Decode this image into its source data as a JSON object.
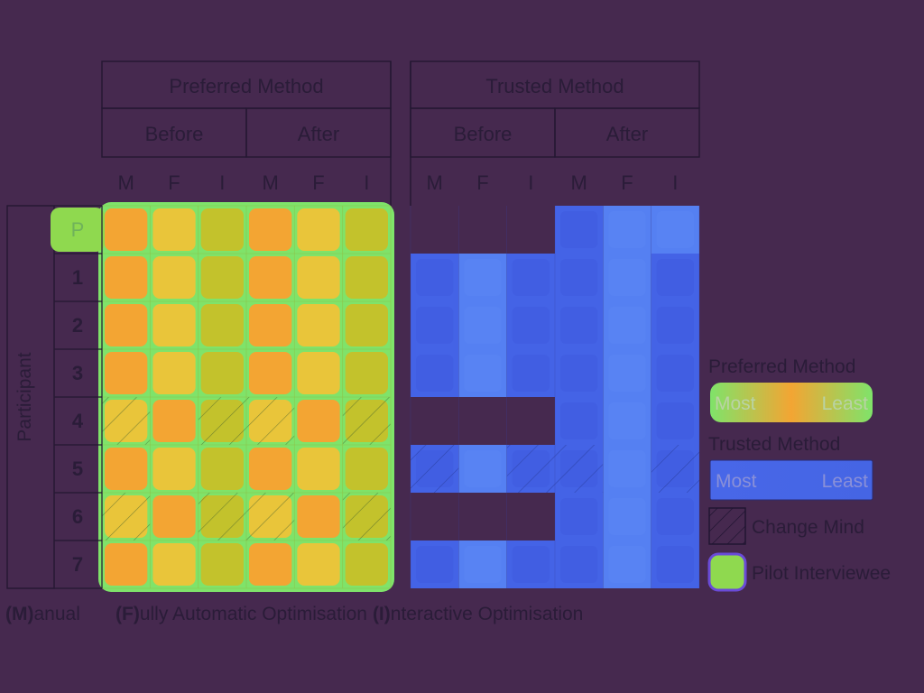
{
  "chart_data": {
    "type": "heatmap",
    "groups": [
      {
        "label": "Preferred Method",
        "phases": [
          "Before",
          "After"
        ]
      },
      {
        "label": "Trusted Method",
        "phases": [
          "Before",
          "After"
        ]
      }
    ],
    "methods": [
      "M",
      "F",
      "I"
    ],
    "ylabel": "Participant",
    "rows": [
      "P",
      "1",
      "2",
      "3",
      "4",
      "5",
      "6",
      "7"
    ],
    "preferred_rank": {
      "before": [
        [
          1,
          2,
          2
        ],
        [
          1,
          2,
          2
        ],
        [
          1,
          2,
          2
        ],
        [
          1,
          2,
          2
        ],
        [
          2,
          1,
          2
        ],
        [
          1,
          2,
          2
        ],
        [
          2,
          1,
          2
        ],
        [
          1,
          2,
          2
        ]
      ],
      "after": [
        [
          1,
          2,
          2
        ],
        [
          1,
          2,
          2
        ],
        [
          1,
          2,
          2
        ],
        [
          1,
          2,
          2
        ],
        [
          2,
          1,
          2
        ],
        [
          1,
          2,
          2
        ],
        [
          2,
          1,
          2
        ],
        [
          1,
          2,
          2
        ]
      ]
    },
    "trusted_rank": {
      "before": [
        null,
        [
          1,
          2,
          1
        ],
        [
          1,
          2,
          1
        ],
        [
          1,
          2,
          1
        ],
        null,
        [
          1,
          2,
          1
        ],
        null,
        [
          1,
          2,
          1
        ]
      ],
      "after": [
        [
          1,
          2,
          2
        ],
        [
          1,
          2,
          1
        ],
        [
          1,
          2,
          1
        ],
        [
          1,
          2,
          1
        ],
        [
          1,
          2,
          1
        ],
        [
          1,
          2,
          1
        ],
        [
          1,
          2,
          1
        ],
        [
          1,
          2,
          1
        ]
      ]
    },
    "change_mind": {
      "preferred": [
        [
          4,
          0
        ],
        [
          4,
          2
        ],
        [
          4,
          3
        ],
        [
          4,
          5
        ],
        [
          6,
          0
        ],
        [
          6,
          2
        ],
        [
          6,
          3
        ],
        [
          6,
          5
        ]
      ],
      "trusted": [
        [
          5,
          0
        ],
        [
          5,
          2
        ],
        [
          5,
          3
        ],
        [
          5,
          5
        ]
      ]
    },
    "pilot_row": 0,
    "legend": {
      "preferred_title": "Preferred Method",
      "trusted_title": "Trusted Method",
      "most": "Most",
      "least": "Least",
      "change_mind": "Change Mind",
      "pilot": "Pilot Interviewee"
    },
    "footnote": {
      "manual_key": "(M)",
      "manual_rest": "anual",
      "fully_key": "(F)",
      "fully_rest": "ully Automatic Optimisation",
      "interactive_key": "(I)",
      "interactive_rest": "nteractive Optimisation"
    },
    "colors": {
      "background": "#46294f",
      "preferred_most": "#f3a533",
      "preferred_mid": "#e9c53a",
      "preferred_least": "#c3c22c",
      "preferred_edge": "#7fe36a",
      "trusted_most": "#4463e6",
      "trusted_least": "#4b72ee",
      "trusted_alt": "#5580f2",
      "pilot": "#8fd94f"
    }
  }
}
